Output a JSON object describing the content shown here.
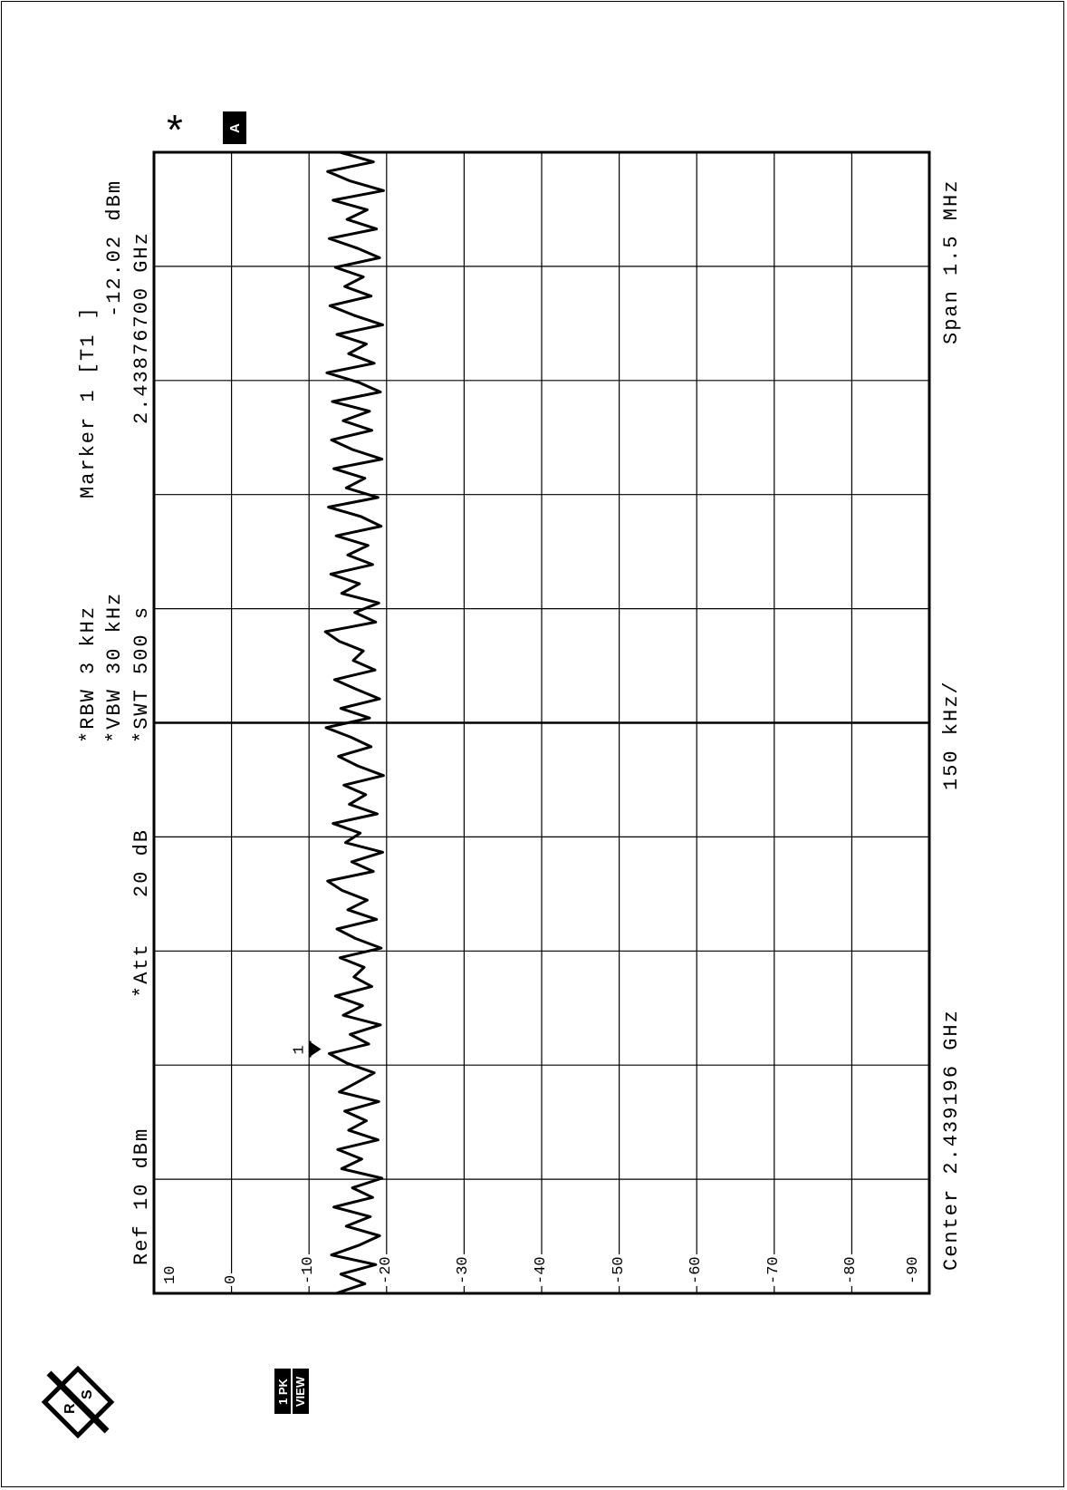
{
  "header": {
    "ref_label": "Ref",
    "ref_value": "10 dBm",
    "att_label": "*Att",
    "att_value": "20 dB",
    "rbw": "*RBW 3 kHz",
    "vbw": "*VBW 30 kHz",
    "swt": "*SWT 500 s",
    "marker_title": "Marker 1 [T1 ]",
    "marker_level": "-12.02 dBm",
    "marker_freq": "2.43876700 GHz"
  },
  "footer": {
    "center": "Center 2.439196 GHz",
    "per_div": "150 kHz/",
    "span": "Span 1.5 MHz"
  },
  "indicators": {
    "trace_mode": "1 PK",
    "trace_view": "VIEW",
    "screen": "A",
    "star": "*",
    "marker_number": "1"
  },
  "icons": {
    "logo": "rohde-schwarz-logo-icon"
  },
  "colors": {
    "trace": "#000000",
    "grid": "#000000",
    "background": "#ffffff"
  },
  "chart_data": {
    "type": "line",
    "title": "",
    "xlabel": "150 kHz/",
    "ylabel": "dBm",
    "x_unit": "GHz",
    "xlim": [
      2.438446,
      2.439946
    ],
    "ylim": [
      -90,
      10
    ],
    "y_ticks": [
      "10",
      "0",
      "-10",
      "-20",
      "-30",
      "-40",
      "-50",
      "-60",
      "-70",
      "-80",
      "-90"
    ],
    "grid": true,
    "x_divisions": 10,
    "y_divisions": 10,
    "series": [
      {
        "values_dbm": [
          -13.5,
          -17.2,
          -14.1,
          -18.6,
          -12.9,
          -16.4,
          -19.1,
          -14.8,
          -17.9,
          -13.2,
          -18.2,
          -15.6,
          -19.4,
          -14.2,
          -16.8,
          -13.7,
          -18.9,
          -15.1,
          -17.4,
          -14.6,
          -19.0,
          -13.9,
          -16.2,
          -18.4,
          -14.9,
          -12.6,
          -17.7,
          -15.3,
          -19.2,
          -14.4,
          -16.9,
          -13.4,
          -18.1,
          -15.8,
          -17.1,
          -14.0,
          -19.3,
          -16.0,
          -13.6,
          -18.7,
          -15.0,
          -17.5,
          -14.3,
          -12.4,
          -18.3,
          -15.5,
          -19.5,
          -14.7,
          -16.6,
          -13.1,
          -18.8,
          -15.2,
          -17.3,
          -14.5,
          -19.6,
          -16.3,
          -13.8,
          -18.0,
          -15.4,
          -12.2,
          -17.8,
          -14.1,
          -19.1,
          -16.1,
          -13.3,
          -18.5,
          -15.7,
          -17.0,
          -13.9,
          -12.1,
          -18.6,
          -15.9,
          -19.0,
          -14.2,
          -16.5,
          -12.8,
          -18.2,
          -15.0,
          -17.6,
          -13.5,
          -19.3,
          -16.7,
          -12.5,
          -18.9,
          -14.8,
          -17.2,
          -13.2,
          -19.4,
          -15.6,
          -12.9,
          -18.1,
          -14.4,
          -17.8,
          -13.0,
          -19.2,
          -16.4,
          -12.3,
          -18.4,
          -15.1,
          -17.4,
          -13.6,
          -19.5,
          -15.8,
          -12.7,
          -18.0,
          -14.6,
          -17.0,
          -13.4,
          -19.1,
          -16.2,
          -12.6,
          -18.7,
          -14.9,
          -17.5,
          -13.1,
          -19.6,
          -15.3,
          -12.4,
          -18.3,
          -14.0
        ]
      }
    ],
    "marker": {
      "label": "1",
      "freq_ghz": 2.438767,
      "level_dbm": -12.02
    }
  }
}
